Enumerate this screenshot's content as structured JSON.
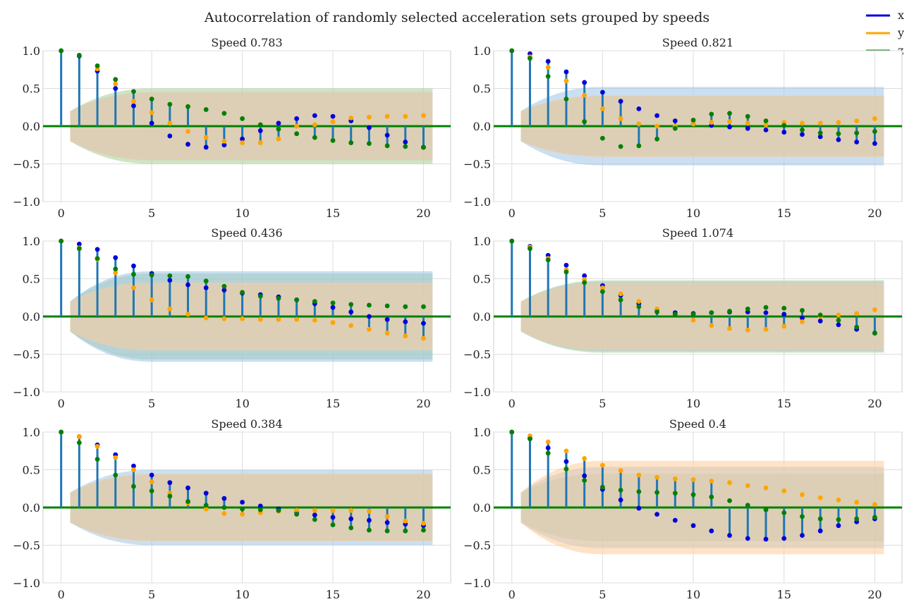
{
  "figure_title": "Autocorrelation of randomly selected acceleration sets grouped by speeds",
  "legend": [
    {
      "label": "x",
      "color": "#0000dd"
    },
    {
      "label": "y",
      "color": "#ffa500"
    },
    {
      "label": "z",
      "color": "#008000"
    }
  ],
  "colors": {
    "stem": "#1f77b4",
    "zero_line": "#008000",
    "band_x": "#9ec4e6",
    "band_y": "#ffcc99",
    "band_z": "#a6cf95"
  },
  "chart_data": [
    {
      "type": "stem",
      "title": "Speed 0.783",
      "xlim": [
        -1,
        21.5
      ],
      "ylim": [
        -1.0,
        1.0
      ],
      "xticks": [
        "0",
        "5",
        "10",
        "15",
        "20"
      ],
      "yticks": [
        "1.0",
        "0.5",
        "0.0",
        "−0.5",
        "−1.0"
      ],
      "lags": [
        0,
        1,
        2,
        3,
        4,
        5,
        6,
        7,
        8,
        9,
        10,
        11,
        12,
        13,
        14,
        15,
        16,
        17,
        18,
        19,
        20
      ],
      "series": [
        {
          "name": "x",
          "values": [
            1.0,
            0.93,
            0.73,
            0.5,
            0.27,
            0.04,
            -0.13,
            -0.24,
            -0.28,
            -0.25,
            -0.17,
            -0.06,
            0.04,
            0.1,
            0.14,
            0.13,
            0.07,
            -0.02,
            -0.12,
            -0.21,
            -0.28
          ]
        },
        {
          "name": "y",
          "values": [
            1.0,
            0.94,
            0.76,
            0.56,
            0.33,
            0.18,
            0.04,
            -0.07,
            -0.15,
            -0.2,
            -0.22,
            -0.22,
            -0.17,
            0.0,
            0.02,
            0.06,
            0.11,
            0.12,
            0.13,
            0.13,
            0.14
          ]
        },
        {
          "name": "z",
          "values": [
            1.0,
            0.94,
            0.8,
            0.62,
            0.46,
            0.36,
            0.29,
            0.26,
            0.22,
            0.17,
            0.1,
            0.02,
            -0.04,
            -0.1,
            -0.15,
            -0.19,
            -0.22,
            -0.23,
            -0.26,
            -0.27,
            -0.28
          ]
        }
      ],
      "confidence_band": {
        "x": 0.45,
        "y": 0.45,
        "z": 0.5
      }
    },
    {
      "type": "stem",
      "title": "Speed 0.821",
      "xlim": [
        -1,
        21.5
      ],
      "ylim": [
        -1.0,
        1.0
      ],
      "xticks": [
        "0",
        "5",
        "10",
        "15",
        "20"
      ],
      "yticks": [
        "1.0",
        "0.5",
        "0.0",
        "−0.5",
        "−1.0"
      ],
      "lags": [
        0,
        1,
        2,
        3,
        4,
        5,
        6,
        7,
        8,
        9,
        10,
        11,
        12,
        13,
        14,
        15,
        16,
        17,
        18,
        19,
        20
      ],
      "series": [
        {
          "name": "x",
          "values": [
            1.0,
            0.96,
            0.86,
            0.72,
            0.58,
            0.45,
            0.33,
            0.23,
            0.14,
            0.07,
            0.03,
            0.01,
            -0.01,
            -0.03,
            -0.05,
            -0.08,
            -0.11,
            -0.14,
            -0.18,
            -0.21,
            -0.23
          ]
        },
        {
          "name": "y",
          "values": [
            1.0,
            0.92,
            0.78,
            0.6,
            0.41,
            0.23,
            0.1,
            0.03,
            0.0,
            0.0,
            0.03,
            0.05,
            0.06,
            0.04,
            0.02,
            0.05,
            0.04,
            0.04,
            0.05,
            0.07,
            0.1
          ]
        },
        {
          "name": "z",
          "values": [
            1.0,
            0.9,
            0.66,
            0.36,
            0.06,
            -0.16,
            -0.27,
            -0.26,
            -0.17,
            -0.03,
            0.08,
            0.16,
            0.17,
            0.13,
            0.07,
            0.01,
            -0.05,
            -0.09,
            -0.1,
            -0.09,
            -0.07
          ]
        }
      ],
      "confidence_band": {
        "x": 0.52,
        "y": 0.41,
        "z": 0.4
      }
    },
    {
      "type": "stem",
      "title": "Speed 0.436",
      "xlim": [
        -1,
        21.5
      ],
      "ylim": [
        -1.0,
        1.0
      ],
      "xticks": [
        "0",
        "5",
        "10",
        "15",
        "20"
      ],
      "yticks": [
        "1.0",
        "0.5",
        "0.0",
        "−0.5",
        "−1.0"
      ],
      "lags": [
        0,
        1,
        2,
        3,
        4,
        5,
        6,
        7,
        8,
        9,
        10,
        11,
        12,
        13,
        14,
        15,
        16,
        17,
        18,
        19,
        20
      ],
      "series": [
        {
          "name": "x",
          "values": [
            1.0,
            0.96,
            0.89,
            0.78,
            0.67,
            0.57,
            0.48,
            0.42,
            0.38,
            0.35,
            0.31,
            0.29,
            0.26,
            0.22,
            0.17,
            0.12,
            0.06,
            0.0,
            -0.04,
            -0.07,
            -0.09
          ]
        },
        {
          "name": "y",
          "values": [
            1.0,
            0.91,
            0.76,
            0.58,
            0.38,
            0.22,
            0.1,
            0.03,
            -0.02,
            -0.03,
            -0.03,
            -0.04,
            -0.04,
            -0.04,
            -0.05,
            -0.08,
            -0.12,
            -0.17,
            -0.22,
            -0.26,
            -0.29
          ]
        },
        {
          "name": "z",
          "values": [
            1.0,
            0.9,
            0.77,
            0.63,
            0.56,
            0.55,
            0.54,
            0.53,
            0.47,
            0.4,
            0.32,
            0.27,
            0.24,
            0.22,
            0.2,
            0.18,
            0.16,
            0.15,
            0.14,
            0.13,
            0.13
          ]
        }
      ],
      "confidence_band": {
        "x": 0.6,
        "y": 0.45,
        "z": 0.57
      }
    },
    {
      "type": "stem",
      "title": "Speed 1.074",
      "xlim": [
        -1,
        21.5
      ],
      "ylim": [
        -1.0,
        1.0
      ],
      "xticks": [
        "0",
        "5",
        "10",
        "15",
        "20"
      ],
      "yticks": [
        "1.0",
        "0.5",
        "0.0",
        "−0.5",
        "−1.0"
      ],
      "lags": [
        0,
        1,
        2,
        3,
        4,
        5,
        6,
        7,
        8,
        9,
        10,
        11,
        12,
        13,
        14,
        15,
        16,
        17,
        18,
        19,
        20
      ],
      "series": [
        {
          "name": "x",
          "values": [
            1.0,
            0.93,
            0.81,
            0.68,
            0.54,
            0.41,
            0.28,
            0.17,
            0.09,
            0.05,
            0.04,
            0.05,
            0.06,
            0.06,
            0.05,
            0.03,
            -0.02,
            -0.06,
            -0.11,
            -0.17,
            -0.22
          ]
        },
        {
          "name": "y",
          "values": [
            1.0,
            0.92,
            0.77,
            0.62,
            0.49,
            0.38,
            0.3,
            0.2,
            0.1,
            0.03,
            -0.05,
            -0.12,
            -0.16,
            -0.18,
            -0.17,
            -0.13,
            -0.07,
            0.0,
            0.02,
            0.04,
            0.09
          ]
        },
        {
          "name": "z",
          "values": [
            1.0,
            0.9,
            0.75,
            0.59,
            0.45,
            0.33,
            0.22,
            0.13,
            0.06,
            0.03,
            0.03,
            0.05,
            0.07,
            0.1,
            0.12,
            0.11,
            0.08,
            0.02,
            -0.05,
            -0.14,
            -0.22
          ]
        }
      ],
      "confidence_band": {
        "x": 0.46,
        "y": 0.45,
        "z": 0.48
      }
    },
    {
      "type": "stem",
      "title": "Speed 0.384",
      "xlim": [
        -1,
        21.5
      ],
      "ylim": [
        -1.0,
        1.0
      ],
      "xticks": [
        "0",
        "5",
        "10",
        "15",
        "20"
      ],
      "yticks": [
        "1.0",
        "0.5",
        "0.0",
        "−0.5",
        "−1.0"
      ],
      "lags": [
        0,
        1,
        2,
        3,
        4,
        5,
        6,
        7,
        8,
        9,
        10,
        11,
        12,
        13,
        14,
        15,
        16,
        17,
        18,
        19,
        20
      ],
      "series": [
        {
          "name": "x",
          "values": [
            1.0,
            0.94,
            0.83,
            0.7,
            0.55,
            0.43,
            0.33,
            0.26,
            0.19,
            0.12,
            0.07,
            0.02,
            -0.02,
            -0.06,
            -0.1,
            -0.13,
            -0.15,
            -0.17,
            -0.2,
            -0.22,
            -0.24
          ]
        },
        {
          "name": "y",
          "values": [
            1.0,
            0.94,
            0.81,
            0.66,
            0.5,
            0.34,
            0.19,
            0.06,
            -0.02,
            -0.08,
            -0.09,
            -0.07,
            -0.05,
            -0.04,
            -0.04,
            -0.04,
            -0.04,
            -0.05,
            -0.12,
            -0.18,
            -0.21
          ]
        },
        {
          "name": "z",
          "values": [
            1.0,
            0.86,
            0.64,
            0.43,
            0.28,
            0.22,
            0.15,
            0.08,
            0.03,
            0.0,
            -0.02,
            -0.03,
            -0.04,
            -0.09,
            -0.16,
            -0.23,
            -0.27,
            -0.3,
            -0.31,
            -0.31,
            -0.3
          ]
        }
      ],
      "confidence_band": {
        "x": 0.5,
        "y": 0.45,
        "z": 0.44
      }
    },
    {
      "type": "stem",
      "title": "Speed 0.4",
      "xlim": [
        -1,
        21.5
      ],
      "ylim": [
        -1.0,
        1.0
      ],
      "xticks": [
        "0",
        "5",
        "10",
        "15",
        "20"
      ],
      "yticks": [
        "1.0",
        "0.5",
        "0.0",
        "−0.5",
        "−1.0"
      ],
      "lags": [
        0,
        1,
        2,
        3,
        4,
        5,
        6,
        7,
        8,
        9,
        10,
        11,
        12,
        13,
        14,
        15,
        16,
        17,
        18,
        19,
        20
      ],
      "series": [
        {
          "name": "x",
          "values": [
            1.0,
            0.92,
            0.79,
            0.61,
            0.42,
            0.24,
            0.1,
            -0.01,
            -0.09,
            -0.17,
            -0.24,
            -0.31,
            -0.37,
            -0.41,
            -0.42,
            -0.41,
            -0.37,
            -0.31,
            -0.24,
            -0.19,
            -0.15
          ]
        },
        {
          "name": "y",
          "values": [
            1.0,
            0.95,
            0.87,
            0.75,
            0.65,
            0.56,
            0.49,
            0.43,
            0.4,
            0.38,
            0.37,
            0.35,
            0.33,
            0.29,
            0.26,
            0.22,
            0.17,
            0.13,
            0.1,
            0.07,
            0.04
          ]
        },
        {
          "name": "z",
          "values": [
            1.0,
            0.91,
            0.72,
            0.51,
            0.36,
            0.27,
            0.23,
            0.21,
            0.2,
            0.19,
            0.17,
            0.14,
            0.09,
            0.03,
            -0.03,
            -0.07,
            -0.12,
            -0.15,
            -0.16,
            -0.15,
            -0.13
          ]
        }
      ],
      "confidence_band": {
        "x": 0.54,
        "y": 0.62,
        "z": 0.45
      }
    }
  ]
}
